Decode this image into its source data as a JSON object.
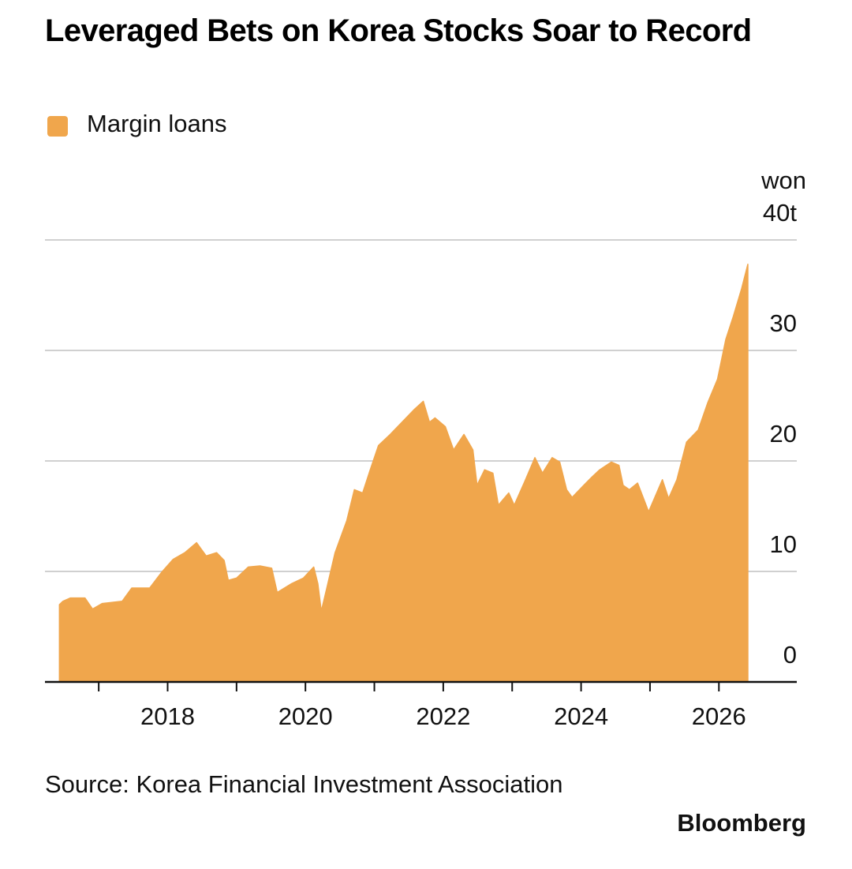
{
  "chart_data": {
    "type": "area",
    "title": "Leveraged Bets on Korea Stocks Soar to Record",
    "source": "Source: Korea Financial Investment Association",
    "brand": "Bloomberg",
    "y_unit": "won",
    "x": [
      2016.43,
      2016.48,
      2016.59,
      2016.8,
      2016.91,
      2017.05,
      2017.34,
      2017.48,
      2017.74,
      2017.91,
      2018.08,
      2018.25,
      2018.42,
      2018.56,
      2018.71,
      2018.82,
      2018.88,
      2019.0,
      2019.17,
      2019.34,
      2019.51,
      2019.59,
      2019.8,
      2019.97,
      2020.12,
      2020.18,
      2020.23,
      2020.31,
      2020.43,
      2020.6,
      2020.71,
      2020.83,
      2020.94,
      2021.06,
      2021.23,
      2021.4,
      2021.57,
      2021.71,
      2021.8,
      2021.88,
      2022.03,
      2022.15,
      2022.3,
      2022.43,
      2022.49,
      2022.6,
      2022.72,
      2022.8,
      2022.95,
      2023.03,
      2023.18,
      2023.33,
      2023.44,
      2023.58,
      2023.69,
      2023.79,
      2023.87,
      2024.04,
      2024.15,
      2024.27,
      2024.44,
      2024.55,
      2024.61,
      2024.7,
      2024.82,
      2024.9,
      2024.98,
      2025.07,
      2025.18,
      2025.27,
      2025.39,
      2025.53,
      2025.7,
      2025.84,
      2025.98,
      2026.1,
      2026.21,
      2026.33,
      2026.42
    ],
    "series": [
      {
        "name": "Margin loans",
        "color": "#f0a64c",
        "values": [
          7.0,
          7.3,
          7.6,
          7.6,
          6.6,
          7.1,
          7.3,
          8.5,
          8.5,
          9.9,
          11.1,
          11.7,
          12.6,
          11.4,
          11.7,
          11.0,
          9.2,
          9.4,
          10.4,
          10.5,
          10.3,
          8.1,
          8.9,
          9.4,
          10.4,
          8.9,
          6.4,
          8.5,
          11.7,
          14.6,
          17.4,
          17.1,
          19.2,
          21.4,
          22.4,
          23.5,
          24.6,
          25.4,
          23.5,
          23.9,
          23.1,
          21.0,
          22.4,
          21.0,
          17.8,
          19.2,
          18.9,
          16.0,
          17.1,
          16.0,
          18.1,
          20.3,
          18.9,
          20.3,
          19.9,
          17.4,
          16.7,
          17.8,
          18.5,
          19.2,
          19.9,
          19.6,
          17.8,
          17.4,
          18.0,
          16.7,
          15.4,
          16.7,
          18.3,
          16.6,
          18.3,
          21.7,
          22.8,
          25.3,
          27.4,
          31.0,
          33.1,
          35.6,
          37.8
        ]
      }
    ],
    "xlim": [
      2016.22,
      2027.13
    ],
    "xticks": [
      2018,
      2020,
      2022,
      2024,
      2026
    ],
    "xminor_ticks": [
      2017,
      2019,
      2021,
      2023,
      2025
    ],
    "ylim": [
      0,
      40
    ],
    "yticks": [
      0,
      10,
      20,
      30,
      {
        "value": 40,
        "label": "40t"
      }
    ],
    "grid": true
  }
}
